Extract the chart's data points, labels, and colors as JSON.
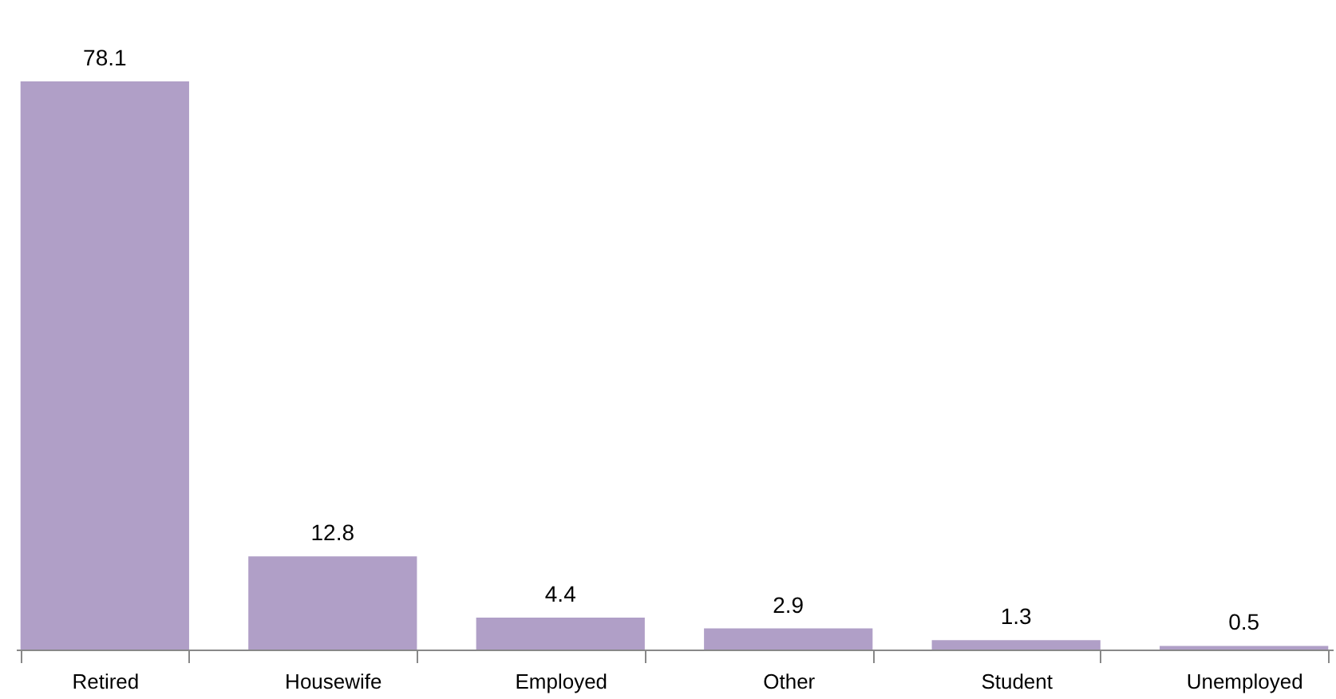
{
  "chart_data": {
    "type": "bar",
    "categories": [
      "Retired",
      "Housewife",
      "Employed",
      "Other",
      "Student",
      "Unemployed"
    ],
    "values": [
      78.1,
      12.8,
      4.4,
      2.9,
      1.3,
      0.5
    ],
    "color": "#b09fc7",
    "data_labels": true
  }
}
